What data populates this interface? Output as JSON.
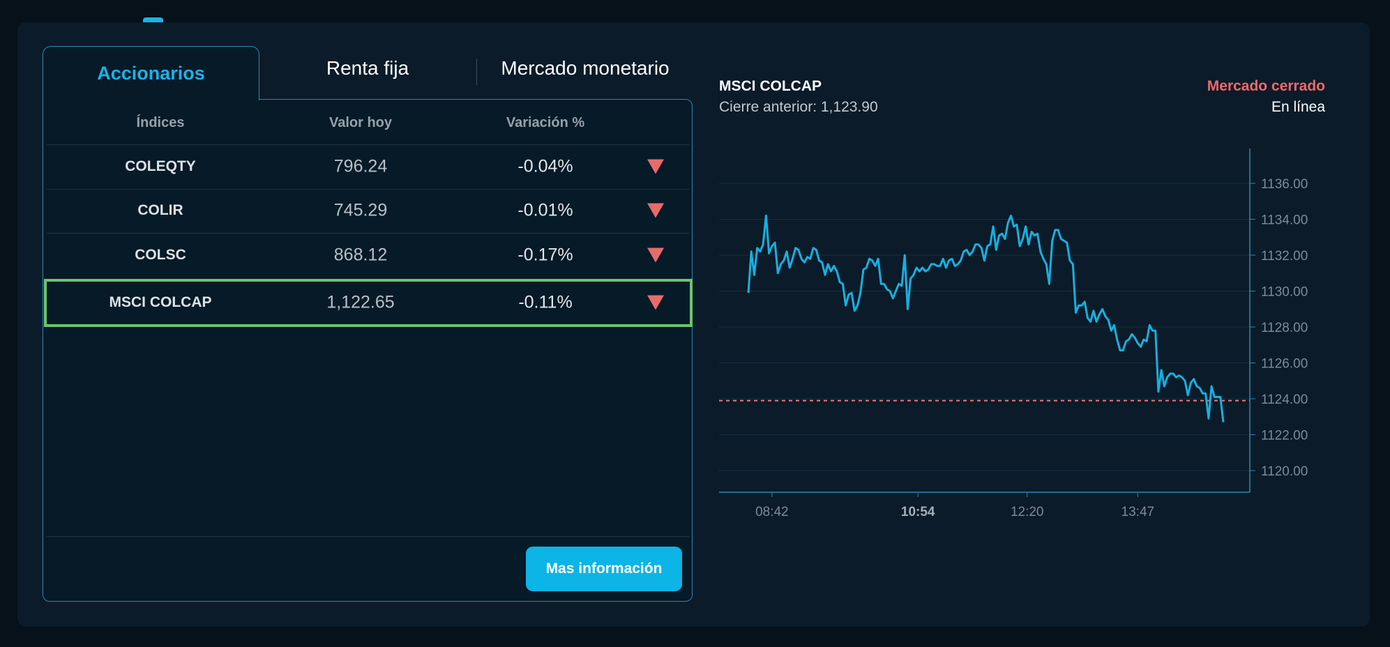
{
  "tabs": [
    {
      "label": "Accionarios",
      "active": true
    },
    {
      "label": "Renta fija"
    },
    {
      "label": "Mercado monetario"
    }
  ],
  "table": {
    "headers": [
      "Índices",
      "Valor hoy",
      "Variación %"
    ],
    "rows": [
      {
        "name": "COLEQTY",
        "value": "796.24",
        "variation": "-0.04%",
        "trend": "down"
      },
      {
        "name": "COLIR",
        "value": "745.29",
        "variation": "-0.01%",
        "trend": "down"
      },
      {
        "name": "COLSC",
        "value": "868.12",
        "variation": "-0.17%",
        "trend": "down"
      },
      {
        "name": "MSCI COLCAP",
        "value": "1,122.65",
        "variation": "-0.11%",
        "trend": "down",
        "selected": true
      }
    ],
    "more_button": "Mas información"
  },
  "chart_header": {
    "title": "MSCI COLCAP",
    "previous_close": "Cierre anterior: 1,123.90",
    "status": "Mercado cerrado",
    "mode": "En línea"
  },
  "colors": {
    "accent": "#1eb2e6",
    "down": "#e86b6b",
    "selected": "#6bc56b",
    "line": "#17b0e0"
  },
  "chart_data": {
    "type": "line",
    "title": "MSCI COLCAP",
    "ylim": [
      1119,
      1138
    ],
    "yticks": [
      1120,
      1122,
      1124,
      1126,
      1128,
      1130,
      1132,
      1134,
      1136
    ],
    "ytick_labels": [
      "1120.00",
      "1122.00",
      "1124.00",
      "1126.00",
      "1128.00",
      "1130.00",
      "1132.00",
      "1134.00",
      "1136.00"
    ],
    "xticks": [
      {
        "index": 8,
        "label": "08:42",
        "bold": false
      },
      {
        "index": 57.5,
        "label": "10:54",
        "bold": true
      },
      {
        "index": 94.5,
        "label": "12:20",
        "bold": false
      },
      {
        "index": 132,
        "label": "13:47",
        "bold": false
      }
    ],
    "reference_line": {
      "value": 1123.9,
      "label": "Cierre anterior"
    },
    "values": [
      1129.9,
      1132.2,
      1130.9,
      1132.4,
      1132.2,
      1132.6,
      1134.2,
      1132.1,
      1132.5,
      1132.7,
      1131.0,
      1131.5,
      1131.7,
      1132.2,
      1131.3,
      1131.8,
      1132.4,
      1132.3,
      1131.8,
      1131.6,
      1131.9,
      1131.8,
      1132.4,
      1132.3,
      1131.7,
      1131.6,
      1130.9,
      1131.5,
      1131.1,
      1131.4,
      1131.1,
      1130.5,
      1130.4,
      1129.2,
      1129.8,
      1129.9,
      1128.9,
      1129.2,
      1129.9,
      1131.2,
      1131.3,
      1131.8,
      1131.7,
      1131.4,
      1131.8,
      1130.4,
      1130.4,
      1130.1,
      1130.0,
      1129.6,
      1130.0,
      1130.4,
      1130.3,
      1132.0,
      1129.0,
      1130.7,
      1130.9,
      1131.3,
      1131.1,
      1131.3,
      1131.1,
      1131.2,
      1131.5,
      1131.5,
      1131.4,
      1131.4,
      1131.8,
      1131.3,
      1131.7,
      1131.8,
      1131.4,
      1131.5,
      1131.7,
      1132.2,
      1132.3,
      1132.0,
      1132.2,
      1132.6,
      1132.6,
      1132.4,
      1131.7,
      1132.5,
      1132.6,
      1133.6,
      1132.3,
      1133.1,
      1133.2,
      1132.9,
      1133.8,
      1134.2,
      1133.6,
      1133.7,
      1132.5,
      1132.9,
      1133.6,
      1132.6,
      1133.3,
      1133.1,
      1133.2,
      1132.2,
      1131.8,
      1131.5,
      1130.4,
      1132.8,
      1133.4,
      1133.4,
      1132.9,
      1132.8,
      1132.7,
      1131.7,
      1131.5,
      1128.8,
      1129.2,
      1129.2,
      1129.4,
      1128.5,
      1128.3,
      1128.9,
      1128.3,
      1128.7,
      1129.0,
      1128.6,
      1128.4,
      1127.8,
      1128.1,
      1127.3,
      1126.7,
      1126.7,
      1127.2,
      1127.3,
      1127.6,
      1127.4,
      1127.1,
      1126.9,
      1127.3,
      1127.2,
      1128.1,
      1127.8,
      1127.8,
      1124.4,
      1125.6,
      1124.7,
      1125.2,
      1125.4,
      1125.4,
      1125.2,
      1125.3,
      1125.2,
      1125.0,
      1124.2,
      1124.9,
      1125.1,
      1124.7,
      1124.6,
      1124.3,
      1124.3,
      1122.9,
      1124.7,
      1124.1,
      1124.1,
      1124.1,
      1122.7
    ]
  }
}
